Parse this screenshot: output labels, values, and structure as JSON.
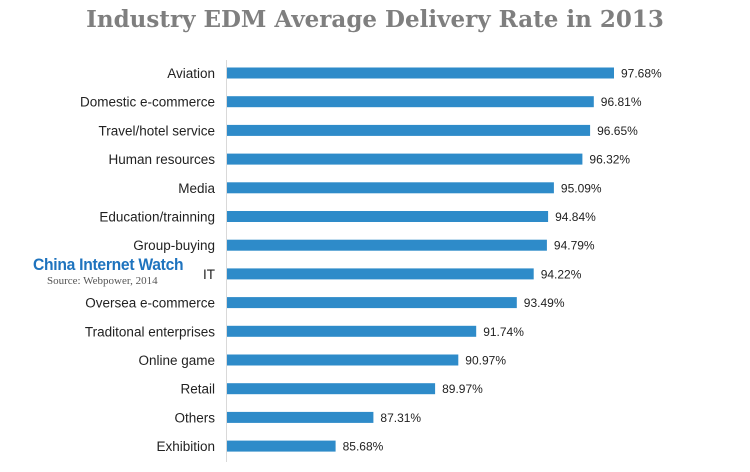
{
  "watermark": {
    "brand": "China Internet Watch",
    "source": "Source: Webpower, 2014"
  },
  "chart_data": {
    "type": "bar",
    "orientation": "horizontal",
    "title": "Industry EDM Average Delivery Rate in 2013",
    "categories": [
      "Aviation",
      "Domestic e-commerce",
      "Travel/hotel service",
      "Human resources",
      "Media",
      "Education/trainning",
      "Group-buying",
      "IT",
      "Oversea e-commerce",
      "Traditonal enterprises",
      "Online game",
      "Retail",
      "Others",
      "Exhibition"
    ],
    "values": [
      97.68,
      96.81,
      96.65,
      96.32,
      95.09,
      94.84,
      94.79,
      94.22,
      93.49,
      91.74,
      90.97,
      89.97,
      87.31,
      85.68
    ],
    "value_labels": [
      "97.68%",
      "96.81%",
      "96.65%",
      "96.32%",
      "95.09%",
      "94.84%",
      "94.79%",
      "94.22%",
      "93.49%",
      "91.74%",
      "90.97%",
      "89.97%",
      "87.31%",
      "85.68%"
    ],
    "bar_color": "#2e8bc9",
    "grid": false,
    "legend": "none"
  }
}
